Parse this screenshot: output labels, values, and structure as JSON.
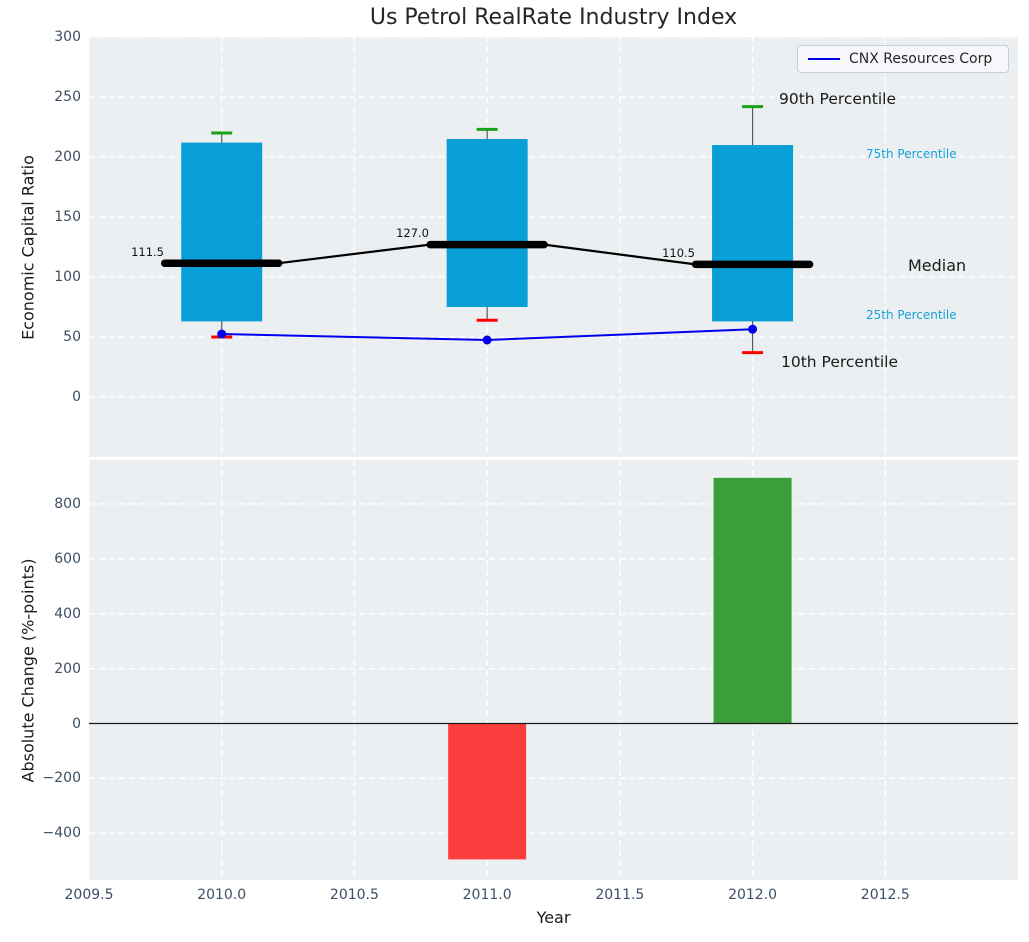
{
  "title": "Us Petrol RealRate Industry Index",
  "legend": {
    "label": "CNX Resources Corp"
  },
  "labels": {
    "p90": "90th Percentile",
    "p75": "75th Percentile",
    "median": "Median",
    "p25": "25th Percentile",
    "p10": "10th Percentile"
  },
  "colors": {
    "axes_bg": "#eceff1",
    "grid": "#ffffff",
    "box": "#089fd6",
    "p90_tick": "#1ca11c",
    "p10_tick": "#ff0000",
    "median_line": "#000000",
    "company_line": "#0000ee",
    "whisker": "#5a5a5a",
    "bar_up": "#3b9e3b",
    "bar_down": "#fb3d3d",
    "zero_line": "#1a1a1a",
    "tick_label": "#3d4f63",
    "cyan_label": "#14a3d6",
    "text": "#262626"
  },
  "chart_data": [
    {
      "type": "bar",
      "subtype": "percentile-box-with-line",
      "title": "Us Petrol RealRate Industry Index",
      "ylabel": "Economic Capital Ratio",
      "x": [
        2010,
        2011,
        2012
      ],
      "series": [
        {
          "name": "90th Percentile",
          "values": [
            220,
            223,
            242
          ]
        },
        {
          "name": "75th Percentile",
          "values": [
            212,
            215,
            210
          ]
        },
        {
          "name": "Median",
          "values": [
            111.5,
            127.0,
            110.5
          ]
        },
        {
          "name": "25th Percentile",
          "values": [
            63,
            75,
            63
          ]
        },
        {
          "name": "10th Percentile",
          "values": [
            50,
            64,
            37
          ]
        },
        {
          "name": "CNX Resources Corp",
          "values": [
            52.5,
            47.5,
            56.5
          ]
        }
      ],
      "median_labels": [
        "111.5",
        "127.0",
        "110.5"
      ],
      "ylim": [
        -50,
        300
      ],
      "ytick_values": [
        300,
        250,
        200,
        150,
        100,
        50,
        0
      ],
      "ytick_labels": [
        "300",
        "250",
        "200",
        "150",
        "100",
        "50",
        "0"
      ],
      "grid": true,
      "legend_position": "upper right"
    },
    {
      "type": "bar",
      "subtype": "absolute-change",
      "ylabel": "Absolute Change (%-points)",
      "xlabel": "Year",
      "x": [
        2011,
        2012
      ],
      "values": [
        -495,
        895
      ],
      "bar_directions": [
        "down",
        "up"
      ],
      "ylim": [
        -570,
        960
      ],
      "ytick_values": [
        800,
        600,
        400,
        200,
        0,
        -200,
        -400
      ],
      "ytick_labels": [
        "800",
        "600",
        "400",
        "200",
        "0",
        "−200",
        "−400"
      ],
      "xlim": [
        2009.5,
        2013.0
      ],
      "xtick_values": [
        2009.5,
        2010.0,
        2010.5,
        2011.0,
        2011.5,
        2012.0,
        2012.5
      ],
      "xtick_labels": [
        "2009.5",
        "2010.0",
        "2010.5",
        "2011.0",
        "2011.5",
        "2012.0",
        "2012.5"
      ],
      "grid": true
    }
  ]
}
